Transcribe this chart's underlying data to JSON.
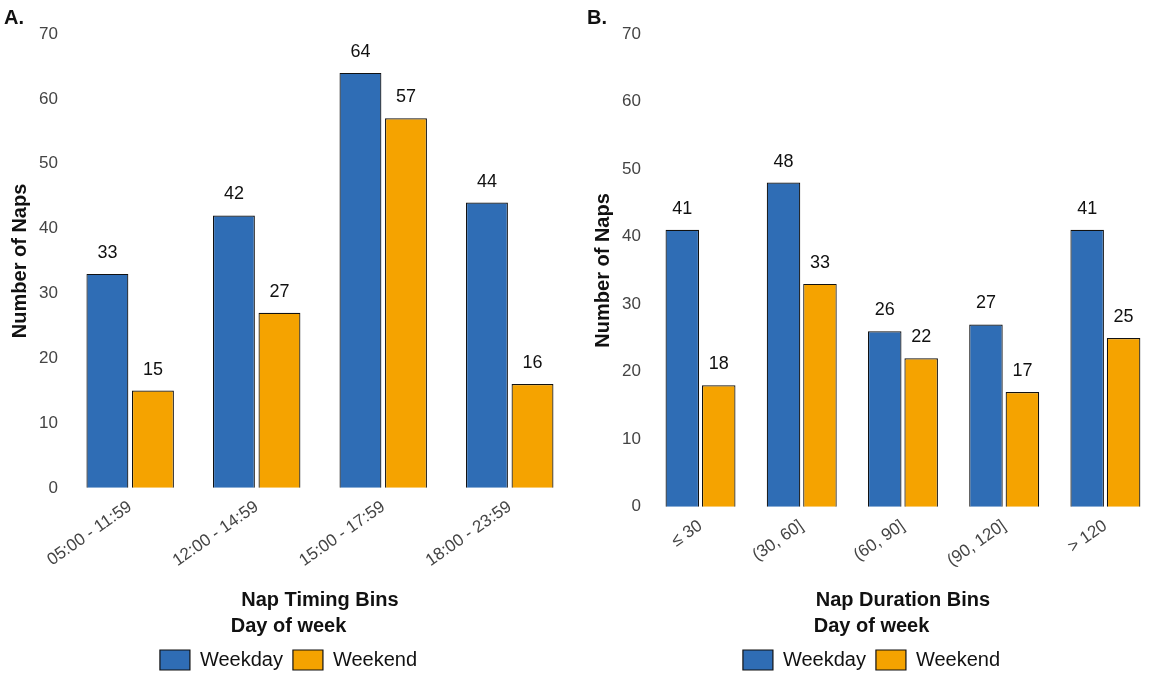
{
  "chart_data": [
    {
      "type": "bar",
      "title": "A.",
      "xlabel": "Nap Timing Bins",
      "ylabel": "Number of Naps",
      "legend_title": "Day of week",
      "legend": "bottom",
      "data_labels": true,
      "ylim": [
        0,
        70
      ],
      "yticks": [
        0,
        10,
        20,
        30,
        40,
        50,
        60,
        70
      ],
      "categories": [
        "05:00 - 11:59",
        "12:00 - 14:59",
        "15:00 - 17:59",
        "18:00 - 23:59"
      ],
      "series": [
        {
          "name": "Weekday",
          "color": "#2f6db5",
          "values": [
            33,
            42,
            64,
            44
          ]
        },
        {
          "name": "Weekend",
          "color": "#f5a300",
          "values": [
            15,
            27,
            57,
            16
          ]
        }
      ]
    },
    {
      "type": "bar",
      "title": "B.",
      "xlabel": "Nap Duration Bins",
      "ylabel": "Number of Naps",
      "legend_title": "Day of week",
      "legend": "bottom",
      "data_labels": true,
      "ylim": [
        0,
        70
      ],
      "yticks": [
        0,
        10,
        20,
        30,
        40,
        50,
        60,
        70
      ],
      "categories": [
        "≤ 30",
        "(30, 60]",
        "(60, 90]",
        "(90, 120]",
        "> 120"
      ],
      "series": [
        {
          "name": "Weekday",
          "color": "#2f6db5",
          "values": [
            41,
            48,
            26,
            27,
            41
          ]
        },
        {
          "name": "Weekend",
          "color": "#f5a300",
          "values": [
            18,
            33,
            22,
            17,
            25
          ]
        }
      ]
    }
  ]
}
